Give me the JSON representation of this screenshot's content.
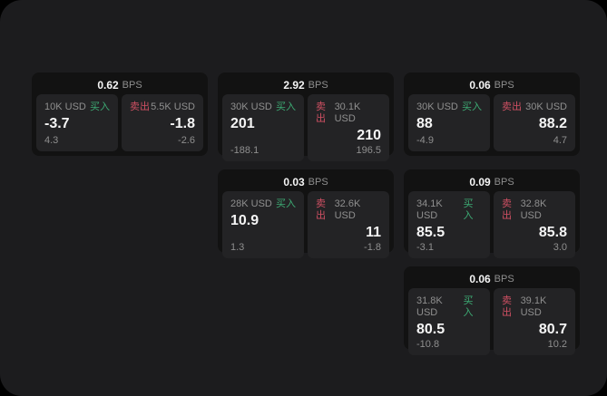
{
  "colors": {
    "background": "#000000",
    "panel": "#1c1c1e",
    "card": "#121212",
    "subpanel": "#232325",
    "buy_green": "#3dab74",
    "sell_red": "#cf5063",
    "text_primary": "#f5f5f5",
    "text_muted": "#8f8f8f"
  },
  "cards": [
    {
      "grid": {
        "col": 1,
        "row": 1
      },
      "bps_value": "0.62",
      "bps_unit": "BPS",
      "buy": {
        "amount": "10K USD",
        "label": "买入",
        "price": "-3.7",
        "change": "4.3"
      },
      "sell": {
        "label": "卖出",
        "amount": "5.5K USD",
        "price": "-1.8",
        "change": "-2.6"
      }
    },
    {
      "grid": {
        "col": 2,
        "row": 1
      },
      "bps_value": "2.92",
      "bps_unit": "BPS",
      "buy": {
        "amount": "30K USD",
        "label": "买入",
        "price": "201",
        "change": "-188.1"
      },
      "sell": {
        "label": "卖出",
        "amount": "30.1K USD",
        "price": "210",
        "change": "196.5"
      }
    },
    {
      "grid": {
        "col": 3,
        "row": 1
      },
      "bps_value": "0.06",
      "bps_unit": "BPS",
      "buy": {
        "amount": "30K USD",
        "label": "买入",
        "price": "88",
        "change": "-4.9"
      },
      "sell": {
        "label": "卖出",
        "amount": "30K USD",
        "price": "88.2",
        "change": "4.7"
      }
    },
    {
      "grid": {
        "col": 2,
        "row": 2
      },
      "bps_value": "0.03",
      "bps_unit": "BPS",
      "buy": {
        "amount": "28K USD",
        "label": "买入",
        "price": "10.9",
        "change": "1.3"
      },
      "sell": {
        "label": "卖出",
        "amount": "32.6K USD",
        "price": "11",
        "change": "-1.8"
      }
    },
    {
      "grid": {
        "col": 3,
        "row": 2
      },
      "bps_value": "0.09",
      "bps_unit": "BPS",
      "buy": {
        "amount": "34.1K USD",
        "label": "买入",
        "price": "85.5",
        "change": "-3.1"
      },
      "sell": {
        "label": "卖出",
        "amount": "32.8K USD",
        "price": "85.8",
        "change": "3.0"
      }
    },
    {
      "grid": {
        "col": 3,
        "row": 3
      },
      "bps_value": "0.06",
      "bps_unit": "BPS",
      "buy": {
        "amount": "31.8K USD",
        "label": "买入",
        "price": "80.5",
        "change": "-10.8"
      },
      "sell": {
        "label": "卖出",
        "amount": "39.1K USD",
        "price": "80.7",
        "change": "10.2"
      }
    }
  ]
}
